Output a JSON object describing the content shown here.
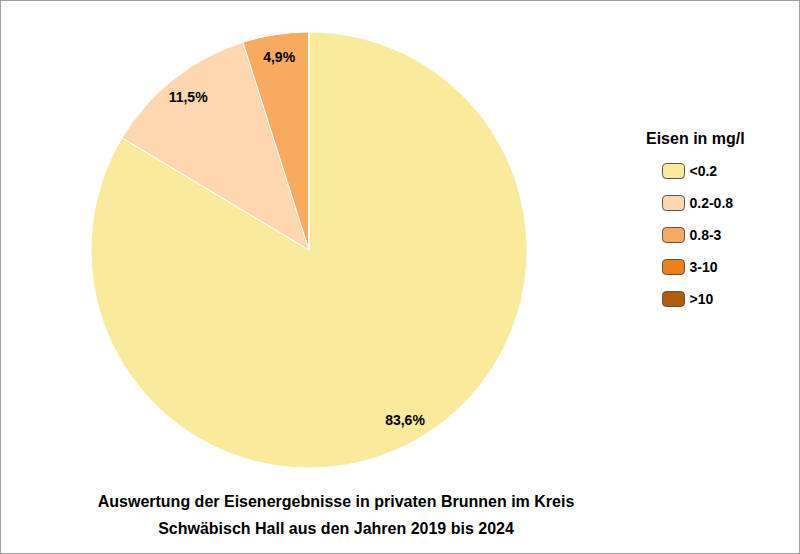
{
  "chart_data": {
    "type": "pie",
    "title": "Auswertung der Eisenergebnisse in privaten Brunnen im Kreis\nSchwäbisch Hall aus den Jahren 2019 bis 2024",
    "legend_title": "Eisen in mg/l",
    "categories": [
      "<0.2",
      "0.2-0.8",
      "0.8-3",
      "3-10",
      ">10"
    ],
    "values": [
      83.6,
      11.5,
      4.9,
      0,
      0
    ],
    "value_labels": [
      "83,6%",
      "11,5%",
      "4,9%",
      null,
      null
    ],
    "colors": [
      "#f9ea9c",
      "#fdd7b0",
      "#f8ab5f",
      "#ef7f1a",
      "#b35c10"
    ],
    "data_labels": true,
    "legend": "right"
  }
}
